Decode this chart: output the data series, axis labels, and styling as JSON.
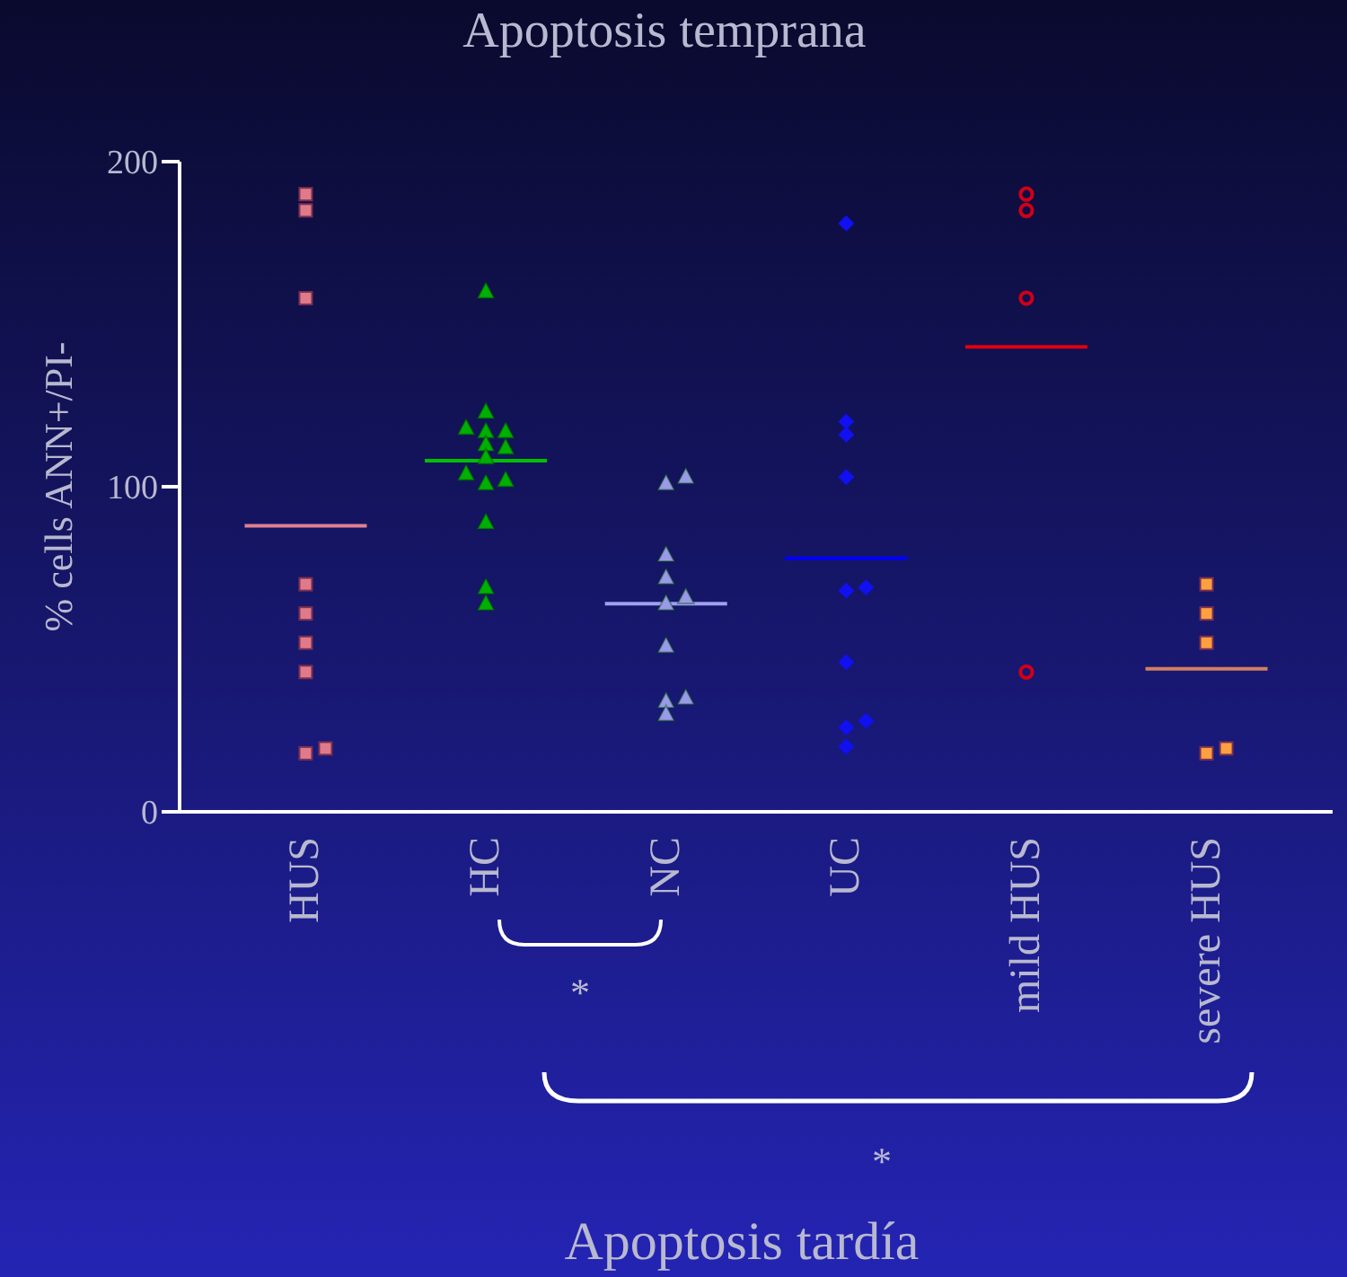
{
  "chart_data": {
    "type": "scatter",
    "title": "Apoptosis temprana",
    "ylabel": "% cells ANN+/PI-",
    "categories": [
      "HUS",
      "HC",
      "NC",
      "UC",
      "mild HUS",
      "severe HUS"
    ],
    "ylim": [
      0,
      200
    ],
    "yticks": [
      0,
      100,
      200
    ],
    "series": [
      {
        "marker": "square",
        "color": "#e07a8a",
        "x": [
          "HUS",
          "HUS",
          "HUS",
          "HUS",
          "HUS",
          "HUS",
          "HUS",
          "HUS",
          "HUS"
        ],
        "values": [
          190,
          185,
          158,
          70,
          61,
          52,
          43,
          18,
          19.5
        ]
      },
      {
        "marker": "triangle",
        "color": "#00b000",
        "x": [
          "HC",
          "HC",
          "HC",
          "HC",
          "HC",
          "HC",
          "HC",
          "HC",
          "HC",
          "HC",
          "HC",
          "HC",
          "HC",
          "HC"
        ],
        "values": [
          160,
          123,
          117,
          117,
          118,
          113,
          112,
          109,
          104,
          102,
          101,
          89,
          69,
          64
        ]
      },
      {
        "marker": "triangle",
        "color": "#9a9ae8",
        "x": [
          "NC",
          "NC",
          "NC",
          "NC",
          "NC",
          "NC",
          "NC",
          "NC",
          "NC",
          "NC"
        ],
        "values": [
          103,
          101,
          79,
          72,
          66,
          64,
          51,
          35,
          34,
          30
        ]
      },
      {
        "marker": "diamond",
        "color": "#1010f0",
        "x": [
          "UC",
          "UC",
          "UC",
          "UC",
          "UC",
          "UC",
          "UC",
          "UC",
          "UC",
          "UC"
        ],
        "values": [
          181,
          120,
          116,
          103,
          69,
          68,
          46,
          28,
          26,
          20
        ]
      },
      {
        "marker": "circle",
        "color": "#d00018",
        "x": [
          "mild HUS",
          "mild HUS",
          "mild HUS",
          "mild HUS"
        ],
        "values": [
          190,
          185,
          158,
          43
        ]
      },
      {
        "marker": "square",
        "color": "#ffa040",
        "x": [
          "severe HUS",
          "severe HUS",
          "severe HUS",
          "severe HUS",
          "severe HUS"
        ],
        "values": [
          70,
          61,
          52,
          18,
          19.5
        ]
      },
      {
        "type": "box",
        "colors": [
          "#e08090",
          "#00c000",
          "#a0a0f0",
          "#0000ff",
          "#e00010",
          "#d08060"
        ],
        "boxes": [
          {
            "low": 88,
            "q1": 88,
            "median": 88,
            "q3": 88,
            "high": 88
          },
          {
            "low": 108,
            "q1": 108,
            "median": 108,
            "q3": 108,
            "high": 108
          },
          {
            "low": 64,
            "q1": 64,
            "median": 64,
            "q3": 64,
            "high": 64
          },
          {
            "low": 78,
            "q1": 78,
            "median": 78,
            "q3": 78,
            "high": 78
          },
          {
            "low": 143,
            "q1": 143,
            "median": 143,
            "q3": 143,
            "high": 143
          },
          {
            "low": 44,
            "q1": 44,
            "median": 44,
            "q3": 44,
            "high": 44
          }
        ]
      }
    ],
    "annotations": [
      "*",
      "*",
      "Apoptosis tardía"
    ]
  }
}
